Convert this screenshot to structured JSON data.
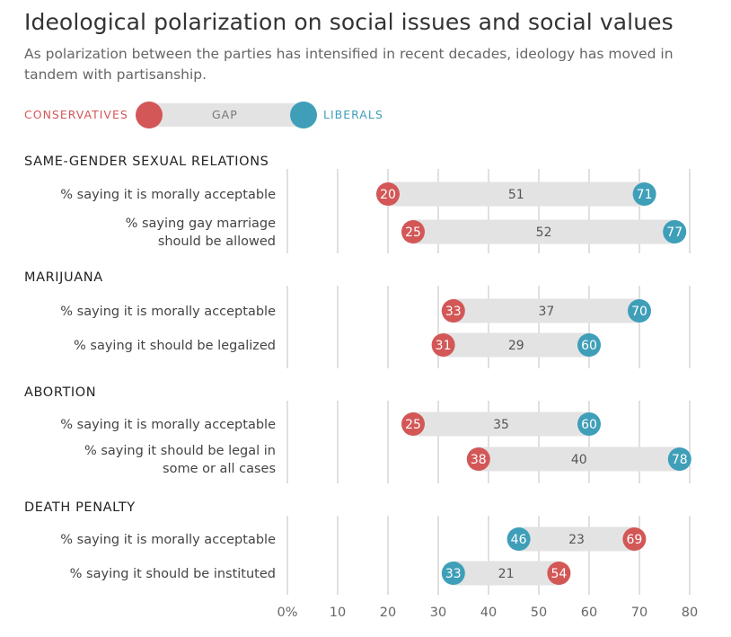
{
  "title": "Ideological polarization on social issues and social values",
  "subtitle": "As polarization between the parties has intensified in recent decades, ideology has moved in tandem with partisanship.",
  "legend": {
    "conservatives": "CONSERVATIVES",
    "gap": "GAP",
    "liberals": "LIBERALS"
  },
  "colors": {
    "conservatives": "#d35757",
    "liberals": "#3f9fb9",
    "gap_bar": "#e3e3e3",
    "grid": "#cccccc"
  },
  "chart_data": {
    "type": "dumbbell",
    "xlim": [
      0,
      80
    ],
    "xticks": [
      "0%",
      "10",
      "20",
      "30",
      "40",
      "50",
      "60",
      "70",
      "80"
    ],
    "groups": [
      {
        "name": "SAME-GENDER SEXUAL RELATIONS",
        "items": [
          {
            "label": [
              "% saying it is morally acceptable"
            ],
            "conservatives": 20,
            "liberals": 71,
            "gap": 51
          },
          {
            "label": [
              "% saying gay marriage",
              "should be allowed"
            ],
            "conservatives": 25,
            "liberals": 77,
            "gap": 52
          }
        ]
      },
      {
        "name": "MARIJUANA",
        "items": [
          {
            "label": [
              "% saying it is morally acceptable"
            ],
            "conservatives": 33,
            "liberals": 70,
            "gap": 37
          },
          {
            "label": [
              "% saying it should be legalized"
            ],
            "conservatives": 31,
            "liberals": 60,
            "gap": 29
          }
        ]
      },
      {
        "name": "ABORTION",
        "items": [
          {
            "label": [
              "% saying it is morally acceptable"
            ],
            "conservatives": 25,
            "liberals": 60,
            "gap": 35
          },
          {
            "label": [
              "% saying it should be legal in",
              "some or all cases"
            ],
            "conservatives": 38,
            "liberals": 78,
            "gap": 40
          }
        ]
      },
      {
        "name": "DEATH PENALTY",
        "items": [
          {
            "label": [
              "% saying it is morally acceptable"
            ],
            "conservatives": 69,
            "liberals": 46,
            "gap": 23
          },
          {
            "label": [
              "% saying it should be instituted"
            ],
            "conservatives": 54,
            "liberals": 33,
            "gap": 21
          }
        ]
      }
    ]
  }
}
